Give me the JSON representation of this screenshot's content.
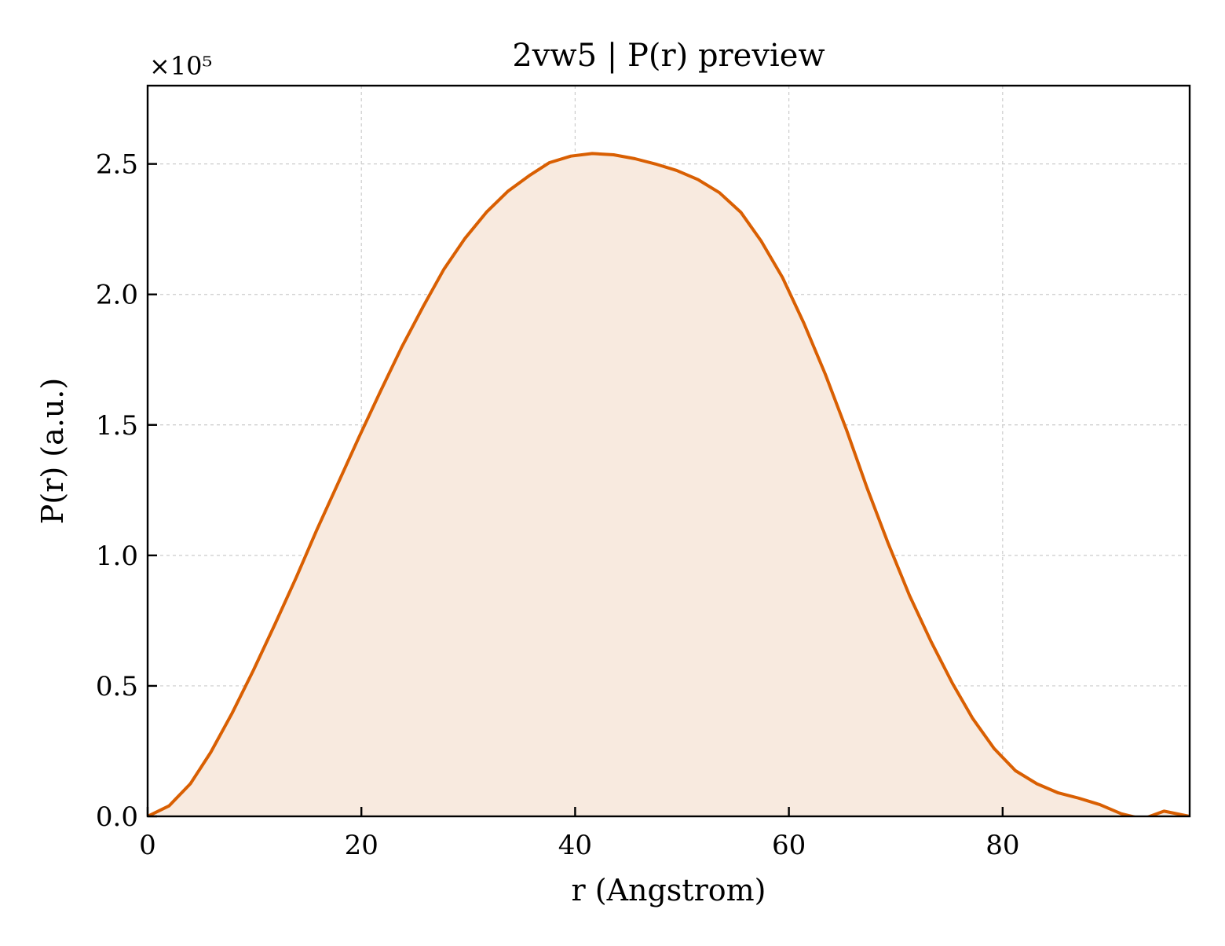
{
  "chart_data": {
    "type": "area",
    "title": "2vw5 | P(r) preview",
    "xlabel": "r (Angstrom)",
    "ylabel": "P(r) (a.u.)",
    "y_multiplier": "×10⁵",
    "xlim": [
      0,
      97.5
    ],
    "ylim": [
      0,
      2.8
    ],
    "x_ticks": [
      0,
      20,
      40,
      60,
      80
    ],
    "x_tick_labels": [
      "0",
      "20",
      "40",
      "60",
      "80"
    ],
    "y_ticks": [
      0,
      0.5,
      1.0,
      1.5,
      2.0,
      2.5
    ],
    "y_tick_labels": [
      "0.0",
      "0.5",
      "1.0",
      "1.5",
      "2.0",
      "2.5"
    ],
    "grid": true,
    "line_color": "#d95f02",
    "fill_color": "#f8eadf",
    "series": [
      {
        "x": [
          0,
          2,
          4,
          5.9,
          7.9,
          9.9,
          11.9,
          13.9,
          15.8,
          17.8,
          19.8,
          21.8,
          23.8,
          25.8,
          27.7,
          29.7,
          31.7,
          33.7,
          35.7,
          37.6,
          39.6,
          41.6,
          43.6,
          45.6,
          47.5,
          49.5,
          51.5,
          53.5,
          55.5,
          57.4,
          59.4,
          61.4,
          63.4,
          65.4,
          67.3,
          69.3,
          71.3,
          73.3,
          75.3,
          77.2,
          79.2,
          81.2,
          83.2,
          85.2,
          87.1,
          89.1,
          91.1,
          93.1,
          95.1,
          97.5
        ],
        "y": [
          0,
          0.04,
          0.125,
          0.245,
          0.395,
          0.56,
          0.735,
          0.915,
          1.095,
          1.275,
          1.455,
          1.63,
          1.8,
          1.955,
          2.095,
          2.215,
          2.315,
          2.395,
          2.455,
          2.505,
          2.53,
          2.54,
          2.535,
          2.52,
          2.5,
          2.475,
          2.44,
          2.39,
          2.315,
          2.205,
          2.065,
          1.89,
          1.695,
          1.48,
          1.26,
          1.045,
          0.845,
          0.67,
          0.51,
          0.375,
          0.26,
          0.175,
          0.125,
          0.09,
          0.07,
          0.045,
          0.01,
          -0.01,
          0.02,
          0.0
        ]
      }
    ]
  }
}
